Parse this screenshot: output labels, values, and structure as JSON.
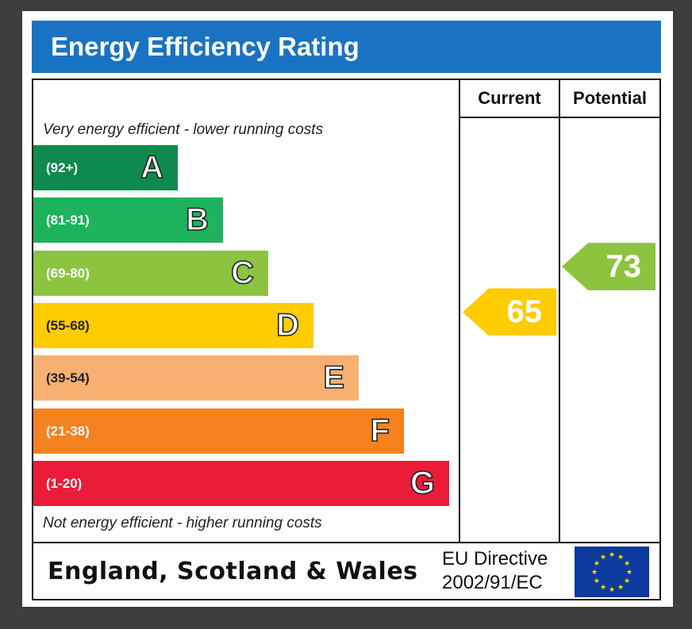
{
  "header": {
    "title": "Energy Efficiency Rating"
  },
  "columns": {
    "current": "Current",
    "potential": "Potential"
  },
  "notes": {
    "top": "Very energy efficient - lower running costs",
    "bottom": "Not energy efficient - higher running costs"
  },
  "footer": {
    "country": "England, Scotland & Wales",
    "directive_line1": "EU Directive",
    "directive_line2": "2002/91/EC"
  },
  "colors": {
    "A": "#0f8a4f",
    "B": "#1db35c",
    "C": "#8cc440",
    "D": "#ffcc00",
    "E": "#f7b071",
    "F": "#f58220",
    "G": "#ea1c3a",
    "title_bar": "#1a73c2",
    "current_arrow": "#ffcc00",
    "potential_arrow": "#8cc440"
  },
  "chart_data": {
    "type": "bar",
    "title": "Energy Efficiency Rating",
    "bands": [
      {
        "letter": "A",
        "range": "(92+)",
        "min": 92,
        "max": 100
      },
      {
        "letter": "B",
        "range": "(81-91)",
        "min": 81,
        "max": 91
      },
      {
        "letter": "C",
        "range": "(69-80)",
        "min": 69,
        "max": 80
      },
      {
        "letter": "D",
        "range": "(55-68)",
        "min": 55,
        "max": 68
      },
      {
        "letter": "E",
        "range": "(39-54)",
        "min": 39,
        "max": 54
      },
      {
        "letter": "F",
        "range": "(21-38)",
        "min": 21,
        "max": 38
      },
      {
        "letter": "G",
        "range": "(1-20)",
        "min": 1,
        "max": 20
      }
    ],
    "current": {
      "label": "Current",
      "value": 65,
      "band": "D"
    },
    "potential": {
      "label": "Potential",
      "value": 73,
      "band": "C"
    }
  }
}
